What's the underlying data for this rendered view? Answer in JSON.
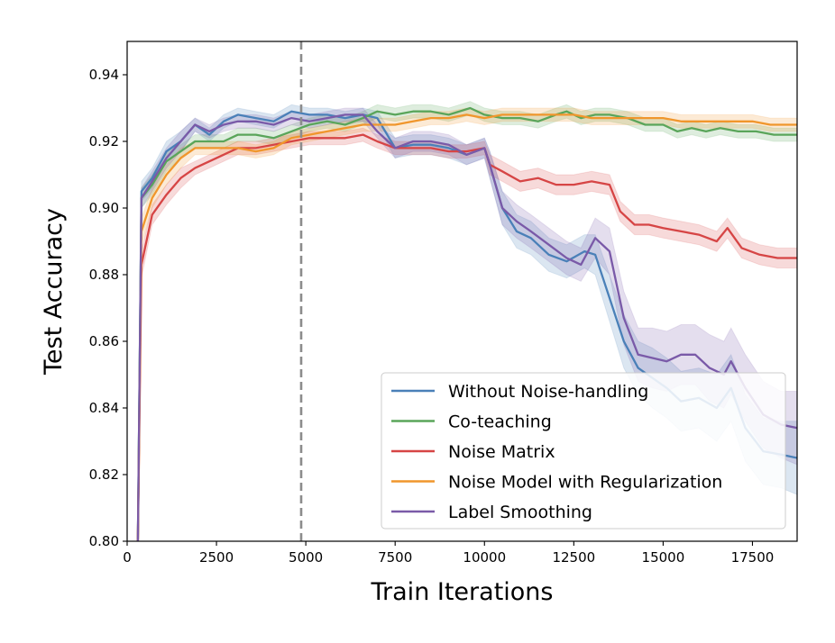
{
  "chart_data": {
    "type": "line",
    "xlabel": "Train Iterations",
    "ylabel": "Test Accuracy",
    "xlim": [
      0,
      18750
    ],
    "ylim": [
      0.8,
      0.95
    ],
    "xticks": [
      0,
      2500,
      5000,
      7500,
      10000,
      12500,
      15000,
      17500
    ],
    "yticks": [
      0.8,
      0.82,
      0.84,
      0.86,
      0.88,
      0.9,
      0.92,
      0.94
    ],
    "xtick_labels": [
      "0",
      "2500",
      "5000",
      "7500",
      "10000",
      "12500",
      "15000",
      "17500"
    ],
    "ytick_labels": [
      "0.80",
      "0.82",
      "0.84",
      "0.86",
      "0.88",
      "0.90",
      "0.92",
      "0.94"
    ],
    "vline_x": 4870,
    "grid": false,
    "legend_position": "lower-right",
    "series": [
      {
        "name": "Without Noise-handling",
        "color": "#4a80b8",
        "x": [
          300,
          400,
          700,
          1100,
          1500,
          1900,
          2300,
          2700,
          3100,
          3600,
          4100,
          4600,
          5100,
          5600,
          6100,
          6600,
          7000,
          7500,
          8000,
          8500,
          9000,
          9500,
          10000,
          10150,
          10500,
          10900,
          11300,
          11800,
          12300,
          12800,
          13100,
          13500,
          13900,
          14300,
          14700,
          15100,
          15500,
          16000,
          16500,
          16900,
          17300,
          17800,
          18300,
          18750
        ],
        "y": [
          0.8,
          0.905,
          0.909,
          0.917,
          0.92,
          0.925,
          0.922,
          0.926,
          0.928,
          0.927,
          0.926,
          0.929,
          0.928,
          0.928,
          0.927,
          0.928,
          0.927,
          0.918,
          0.919,
          0.919,
          0.918,
          0.916,
          0.918,
          0.913,
          0.9,
          0.893,
          0.891,
          0.886,
          0.884,
          0.887,
          0.886,
          0.873,
          0.86,
          0.852,
          0.849,
          0.846,
          0.842,
          0.843,
          0.84,
          0.846,
          0.834,
          0.827,
          0.826,
          0.825
        ],
        "band": [
          0.004,
          0.003,
          0.003,
          0.003,
          0.003,
          0.002,
          0.002,
          0.002,
          0.002,
          0.002,
          0.002,
          0.002,
          0.002,
          0.002,
          0.002,
          0.002,
          0.002,
          0.003,
          0.003,
          0.003,
          0.003,
          0.003,
          0.003,
          0.004,
          0.005,
          0.005,
          0.005,
          0.005,
          0.005,
          0.005,
          0.006,
          0.007,
          0.008,
          0.008,
          0.009,
          0.009,
          0.009,
          0.009,
          0.01,
          0.01,
          0.01,
          0.01,
          0.01,
          0.011
        ]
      },
      {
        "name": "Co-teaching",
        "color": "#5aa55a",
        "x": [
          300,
          400,
          700,
          1100,
          1500,
          1900,
          2300,
          2700,
          3100,
          3600,
          4100,
          4600,
          5100,
          5600,
          6100,
          6600,
          7000,
          7500,
          8000,
          8500,
          9000,
          9600,
          10000,
          10500,
          11000,
          11500,
          12000,
          12300,
          12700,
          13100,
          13500,
          14000,
          14500,
          15000,
          15400,
          15800,
          16200,
          16600,
          17100,
          17600,
          18100,
          18750
        ],
        "y": [
          0.8,
          0.903,
          0.907,
          0.914,
          0.917,
          0.92,
          0.92,
          0.92,
          0.922,
          0.922,
          0.921,
          0.923,
          0.925,
          0.926,
          0.925,
          0.927,
          0.929,
          0.928,
          0.929,
          0.929,
          0.928,
          0.93,
          0.928,
          0.927,
          0.927,
          0.926,
          0.928,
          0.929,
          0.927,
          0.928,
          0.928,
          0.927,
          0.925,
          0.925,
          0.923,
          0.924,
          0.923,
          0.924,
          0.923,
          0.923,
          0.922,
          0.922
        ],
        "band": [
          0.004,
          0.003,
          0.003,
          0.003,
          0.002,
          0.002,
          0.002,
          0.002,
          0.002,
          0.002,
          0.002,
          0.002,
          0.002,
          0.002,
          0.002,
          0.002,
          0.002,
          0.002,
          0.002,
          0.002,
          0.002,
          0.002,
          0.002,
          0.002,
          0.002,
          0.002,
          0.002,
          0.002,
          0.002,
          0.002,
          0.002,
          0.002,
          0.002,
          0.002,
          0.002,
          0.002,
          0.002,
          0.002,
          0.002,
          0.002,
          0.002,
          0.002
        ]
      },
      {
        "name": "Noise Matrix",
        "color": "#d64545",
        "x": [
          300,
          400,
          700,
          1100,
          1500,
          1900,
          2300,
          2700,
          3100,
          3600,
          4100,
          4600,
          5100,
          5600,
          6100,
          6600,
          7000,
          7500,
          8000,
          8500,
          9000,
          9500,
          10000,
          10150,
          10500,
          11000,
          11500,
          12000,
          12500,
          13000,
          13500,
          13800,
          14200,
          14600,
          15000,
          15500,
          16000,
          16500,
          16800,
          17200,
          17700,
          18200,
          18750
        ],
        "y": [
          0.8,
          0.883,
          0.898,
          0.904,
          0.909,
          0.912,
          0.914,
          0.916,
          0.918,
          0.918,
          0.919,
          0.92,
          0.921,
          0.921,
          0.921,
          0.922,
          0.92,
          0.918,
          0.918,
          0.918,
          0.917,
          0.917,
          0.918,
          0.913,
          0.911,
          0.908,
          0.909,
          0.907,
          0.907,
          0.908,
          0.907,
          0.899,
          0.895,
          0.895,
          0.894,
          0.893,
          0.892,
          0.89,
          0.894,
          0.888,
          0.886,
          0.885,
          0.885
        ],
        "band": [
          0.004,
          0.004,
          0.003,
          0.003,
          0.003,
          0.002,
          0.002,
          0.002,
          0.002,
          0.002,
          0.002,
          0.002,
          0.002,
          0.002,
          0.002,
          0.002,
          0.002,
          0.002,
          0.002,
          0.002,
          0.002,
          0.002,
          0.002,
          0.003,
          0.003,
          0.003,
          0.003,
          0.003,
          0.003,
          0.003,
          0.003,
          0.003,
          0.003,
          0.003,
          0.003,
          0.003,
          0.003,
          0.003,
          0.003,
          0.003,
          0.003,
          0.003,
          0.003
        ]
      },
      {
        "name": "Noise Model with Regularization",
        "color": "#f0962c",
        "x": [
          300,
          400,
          700,
          1100,
          1500,
          1900,
          2300,
          2700,
          3100,
          3600,
          4100,
          4600,
          5100,
          5600,
          6100,
          6600,
          7000,
          7500,
          8000,
          8500,
          9000,
          9500,
          10000,
          10500,
          11000,
          11500,
          12000,
          12500,
          13000,
          13500,
          14000,
          14500,
          15000,
          15500,
          16000,
          16500,
          17000,
          17500,
          18000,
          18750
        ],
        "y": [
          0.8,
          0.893,
          0.903,
          0.91,
          0.915,
          0.918,
          0.918,
          0.918,
          0.918,
          0.917,
          0.918,
          0.921,
          0.922,
          0.923,
          0.924,
          0.925,
          0.925,
          0.925,
          0.926,
          0.927,
          0.927,
          0.928,
          0.927,
          0.928,
          0.928,
          0.928,
          0.928,
          0.928,
          0.927,
          0.927,
          0.927,
          0.927,
          0.927,
          0.926,
          0.926,
          0.926,
          0.926,
          0.926,
          0.925,
          0.925
        ],
        "band": [
          0.004,
          0.004,
          0.003,
          0.003,
          0.003,
          0.002,
          0.002,
          0.002,
          0.002,
          0.002,
          0.002,
          0.002,
          0.002,
          0.002,
          0.002,
          0.002,
          0.002,
          0.002,
          0.002,
          0.002,
          0.002,
          0.002,
          0.002,
          0.002,
          0.002,
          0.002,
          0.002,
          0.002,
          0.002,
          0.002,
          0.002,
          0.002,
          0.002,
          0.002,
          0.002,
          0.002,
          0.002,
          0.002,
          0.002,
          0.002
        ]
      },
      {
        "name": "Label Smoothing",
        "color": "#7a5aa8",
        "x": [
          300,
          400,
          700,
          1100,
          1500,
          1900,
          2300,
          2700,
          3100,
          3600,
          4100,
          4600,
          5100,
          5600,
          6100,
          6600,
          7000,
          7500,
          8000,
          8500,
          9000,
          9500,
          10000,
          10150,
          10500,
          10900,
          11300,
          11800,
          12300,
          12700,
          13100,
          13500,
          13900,
          14300,
          14700,
          15100,
          15500,
          15900,
          16300,
          16700,
          16900,
          17300,
          17800,
          18300,
          18750
        ],
        "y": [
          0.8,
          0.903,
          0.908,
          0.915,
          0.92,
          0.925,
          0.923,
          0.925,
          0.926,
          0.926,
          0.925,
          0.927,
          0.926,
          0.927,
          0.928,
          0.928,
          0.923,
          0.918,
          0.92,
          0.92,
          0.919,
          0.916,
          0.918,
          0.913,
          0.9,
          0.896,
          0.893,
          0.889,
          0.885,
          0.883,
          0.891,
          0.887,
          0.867,
          0.856,
          0.855,
          0.854,
          0.856,
          0.856,
          0.852,
          0.85,
          0.854,
          0.846,
          0.838,
          0.835,
          0.834
        ],
        "band": [
          0.004,
          0.003,
          0.003,
          0.003,
          0.003,
          0.002,
          0.002,
          0.002,
          0.002,
          0.002,
          0.002,
          0.002,
          0.002,
          0.002,
          0.002,
          0.002,
          0.002,
          0.003,
          0.003,
          0.003,
          0.003,
          0.003,
          0.003,
          0.004,
          0.005,
          0.005,
          0.005,
          0.005,
          0.005,
          0.005,
          0.006,
          0.007,
          0.008,
          0.008,
          0.009,
          0.009,
          0.009,
          0.009,
          0.01,
          0.01,
          0.01,
          0.01,
          0.01,
          0.01,
          0.011
        ]
      }
    ]
  }
}
